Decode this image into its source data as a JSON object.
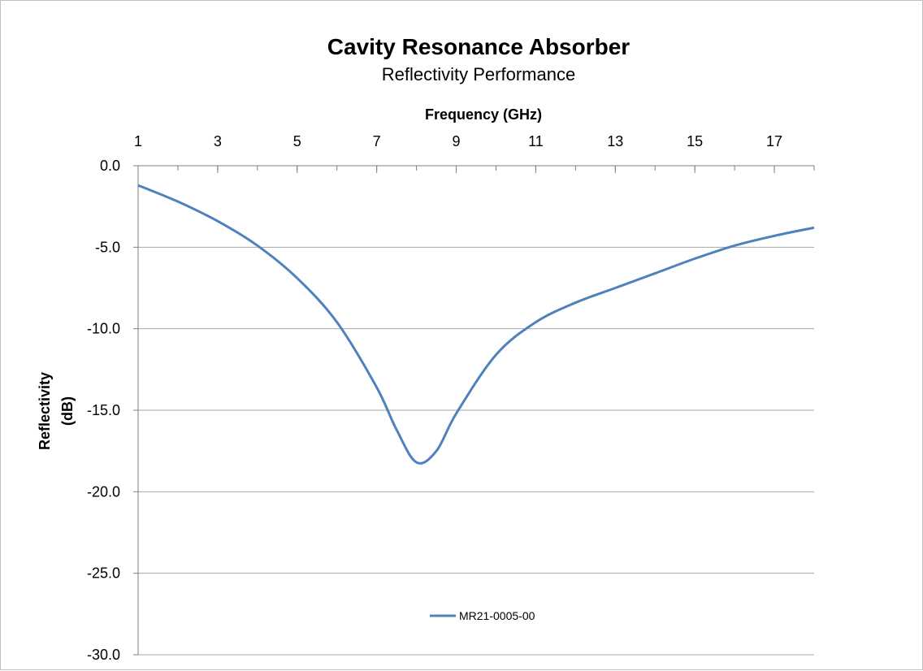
{
  "chart_data": {
    "type": "line",
    "title": "Cavity Resonance Absorber",
    "subtitle": "Reflectivity Performance",
    "xlabel": "Frequency (GHz)",
    "ylabel_lines": [
      "Reflectivity",
      "(dB)"
    ],
    "xlim": [
      1,
      18
    ],
    "ylim": [
      -30,
      0
    ],
    "x_ticks": [
      1,
      3,
      5,
      7,
      9,
      11,
      13,
      15,
      17
    ],
    "y_ticks": [
      "0.0",
      "-5.0",
      "-10.0",
      "-15.0",
      "-20.0",
      "-25.0",
      "-30.0"
    ],
    "x_axis_position": "top",
    "grid": "horizontal",
    "legend": "bottom",
    "series": [
      {
        "name": "MR21-0005-00",
        "color": "#4f81bd",
        "x": [
          1,
          2,
          3,
          4,
          5,
          6,
          7,
          7.5,
          8,
          8.5,
          9,
          10,
          11,
          12,
          13,
          14,
          15,
          16,
          17,
          18
        ],
        "y": [
          -1.2,
          -2.2,
          -3.4,
          -4.9,
          -6.9,
          -9.6,
          -13.6,
          -16.2,
          -18.2,
          -17.5,
          -15.2,
          -11.6,
          -9.6,
          -8.4,
          -7.5,
          -6.6,
          -5.7,
          -4.9,
          -4.3,
          -3.8
        ]
      }
    ]
  }
}
